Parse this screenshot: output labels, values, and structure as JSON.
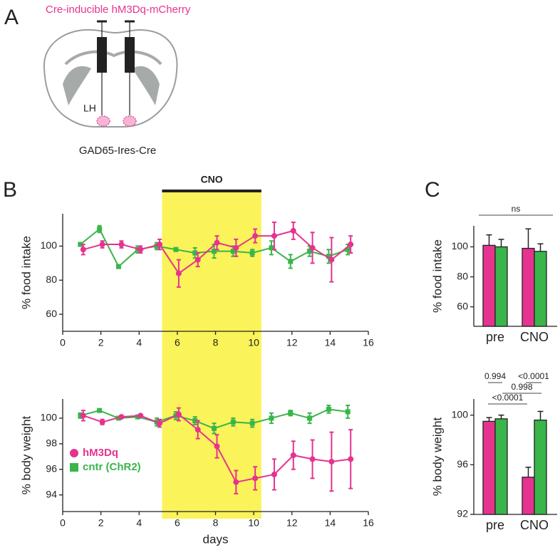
{
  "panel_labels": [
    "A",
    "B",
    "C"
  ],
  "diagram": {
    "construct": "Cre-inducible hM3Dq-mCherry",
    "region": "LH",
    "mouse_line": "GAD65-Ires-Cre"
  },
  "chart_data": [
    {
      "type": "line",
      "ylabel": "% food intake",
      "x": [
        1,
        2,
        3,
        4,
        5,
        6,
        7,
        8,
        9,
        10,
        11,
        12,
        13,
        14,
        15
      ],
      "xlim": [
        0,
        16
      ],
      "xticks": [
        0,
        2,
        4,
        6,
        8,
        10,
        12,
        14,
        16
      ],
      "ylim": [
        50,
        119
      ],
      "yticks": [
        60,
        80,
        100
      ],
      "shade": {
        "label": "CNO",
        "x": [
          5.2,
          10.4
        ],
        "color": "#fbf35a"
      },
      "series": [
        {
          "color": "#39b54a",
          "marker": "square",
          "values": [
            101,
            110,
            88,
            98,
            100,
            98,
            96,
            97,
            97,
            96,
            99,
            91,
            97,
            94,
            98
          ],
          "errors": [
            1,
            2,
            1,
            2,
            2,
            1,
            3,
            4,
            3,
            2,
            4,
            4,
            3,
            4,
            3
          ]
        },
        {
          "color": "#e5338f",
          "marker": "circle",
          "values": [
            98,
            101,
            101,
            98,
            101,
            84,
            92,
            102,
            99,
            106,
            106,
            109,
            99,
            92,
            101
          ],
          "errors": [
            3,
            2,
            2,
            2,
            3,
            8,
            4,
            4,
            5,
            4,
            8,
            5,
            9,
            13,
            5
          ]
        }
      ]
    },
    {
      "type": "line",
      "ylabel": "% body weight",
      "xlabel": "days",
      "x": [
        1,
        2,
        3,
        4,
        5,
        6,
        7,
        8,
        9,
        10,
        11,
        12,
        13,
        14,
        15
      ],
      "xlim": [
        0,
        16
      ],
      "xticks": [
        0,
        2,
        4,
        6,
        8,
        10,
        12,
        14,
        16
      ],
      "ylim": [
        92.7,
        101.5
      ],
      "yticks": [
        94,
        96,
        98,
        100
      ],
      "series": [
        {
          "name": "cntr (ChR2)",
          "color": "#39b54a",
          "marker": "square",
          "values": [
            100.2,
            100.6,
            100.0,
            100.1,
            99.7,
            100.2,
            99.8,
            99.2,
            99.7,
            99.6,
            100.0,
            100.4,
            100.0,
            100.7,
            100.5
          ],
          "errors": [
            0.2,
            0.1,
            0.1,
            0.1,
            0.3,
            0.3,
            0.3,
            0.4,
            0.3,
            0.3,
            0.4,
            0.2,
            0.4,
            0.3,
            0.5
          ]
        },
        {
          "name": "hM3Dq",
          "color": "#e5338f",
          "marker": "circle",
          "values": [
            100.2,
            99.7,
            100.1,
            100.2,
            99.6,
            100.3,
            99.1,
            97.8,
            95.0,
            95.3,
            95.6,
            97.1,
            96.8,
            96.6,
            96.8
          ],
          "errors": [
            0.4,
            0.2,
            0.1,
            0.1,
            0.3,
            0.5,
            0.7,
            0.9,
            0.9,
            0.9,
            1.2,
            1.1,
            1.5,
            2.3,
            2.3
          ]
        }
      ]
    },
    {
      "type": "bar",
      "ylabel": "% food intake",
      "categories": [
        "pre",
        "CNO"
      ],
      "ylim": [
        47,
        114
      ],
      "yticks": [
        60,
        80,
        100
      ],
      "annotations": [
        "ns"
      ],
      "series": [
        {
          "color": "#e5338f",
          "values": [
            101,
            99
          ],
          "errors": [
            7,
            13
          ]
        },
        {
          "color": "#39b54a",
          "values": [
            100,
            97
          ],
          "errors": [
            5,
            5
          ]
        }
      ]
    },
    {
      "type": "bar",
      "ylabel": "% body weight",
      "categories": [
        "pre",
        "CNO"
      ],
      "ylim": [
        92,
        101.3
      ],
      "yticks": [
        92,
        96,
        100
      ],
      "annotations": [
        "0.994",
        "<0.0001",
        "0.998",
        "<0.0001"
      ],
      "series": [
        {
          "color": "#e5338f",
          "values": [
            99.5,
            95.0
          ],
          "errors": [
            0.3,
            0.8
          ]
        },
        {
          "color": "#39b54a",
          "values": [
            99.7,
            99.6
          ],
          "errors": [
            0.3,
            0.7
          ]
        }
      ]
    }
  ]
}
